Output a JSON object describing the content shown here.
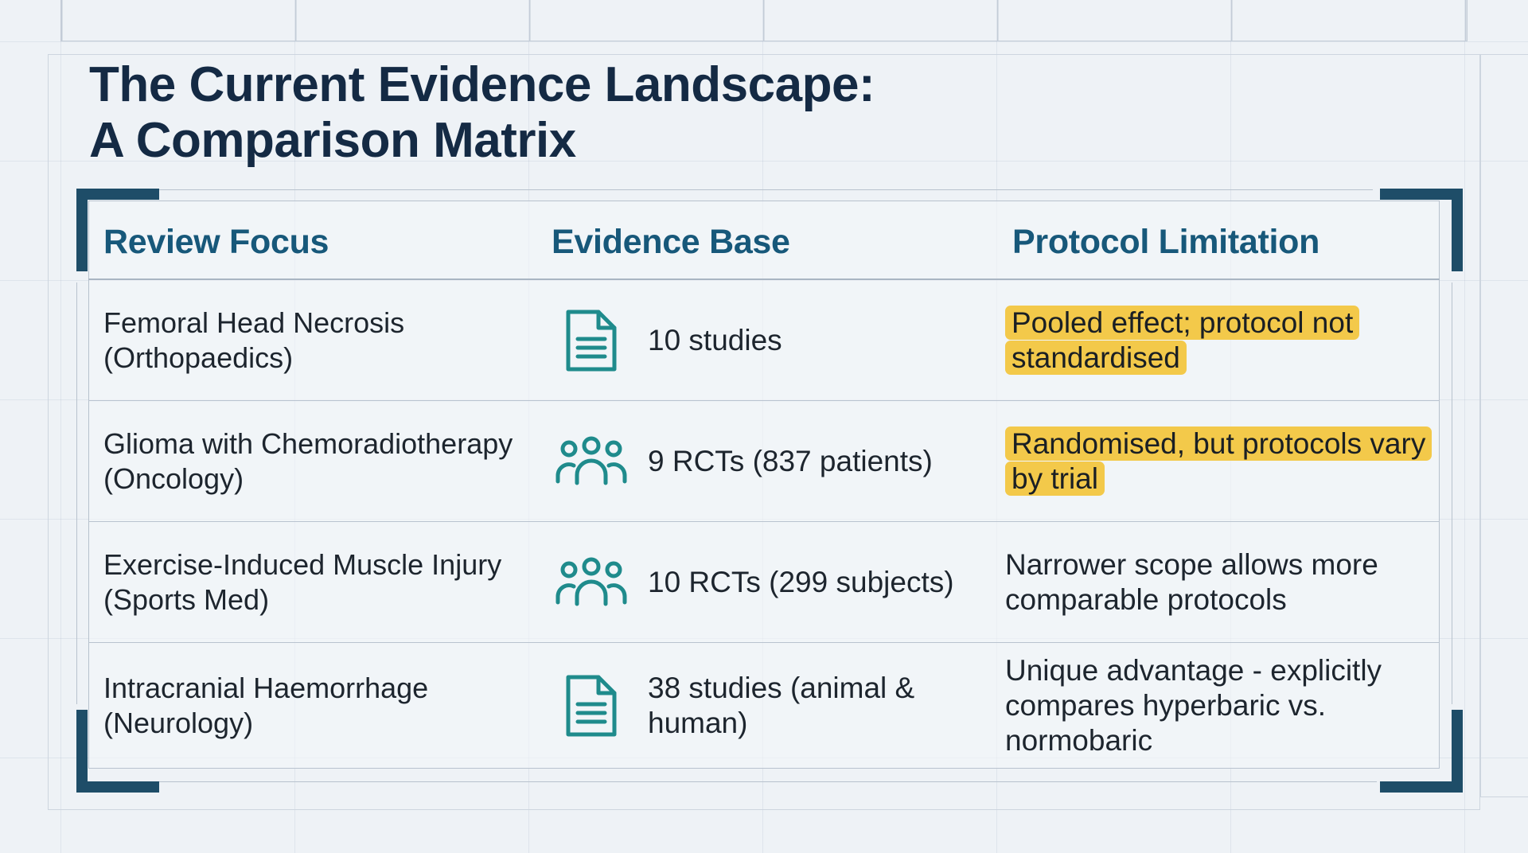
{
  "slide": {
    "title_line1": "The Current Evidence Landscape:",
    "title_line2": "A Comparison Matrix"
  },
  "table": {
    "headers": [
      "Review Focus",
      "Evidence Base",
      "Protocol Limitation"
    ],
    "rows": [
      {
        "focus_line1": "Femoral Head Necrosis",
        "focus_line2": "(Orthopaedics)",
        "icon": "document-icon",
        "evidence": "10 studies",
        "limitation": "Pooled effect; protocol not standardised",
        "highlighted": true
      },
      {
        "focus_line1": "Glioma with Chemoradiotherapy",
        "focus_line2": "(Oncology)",
        "icon": "people-icon",
        "evidence": "9 RCTs (837 patients)",
        "limitation": "Randomised, but protocols vary by trial",
        "highlighted": true
      },
      {
        "focus_line1": "Exercise-Induced Muscle Injury",
        "focus_line2": "(Sports Med)",
        "icon": "people-icon",
        "evidence": "10 RCTs (299 subjects)",
        "limitation": "Narrower scope allows more comparable protocols",
        "highlighted": false
      },
      {
        "focus_line1": "Intracranial Haemorrhage",
        "focus_line2": "(Neurology)",
        "icon": "document-icon",
        "evidence": "38 studies (animal & human)",
        "limitation": "Unique advantage - explicitly compares hyperbaric vs. normobaric",
        "highlighted": false
      }
    ]
  },
  "colors": {
    "title": "#142a44",
    "header_text": "#17587a",
    "icon_teal": "#1f8b8c",
    "highlight": "#f3c94a",
    "corner_bracket": "#1e4d68",
    "background": "#eef2f6"
  }
}
